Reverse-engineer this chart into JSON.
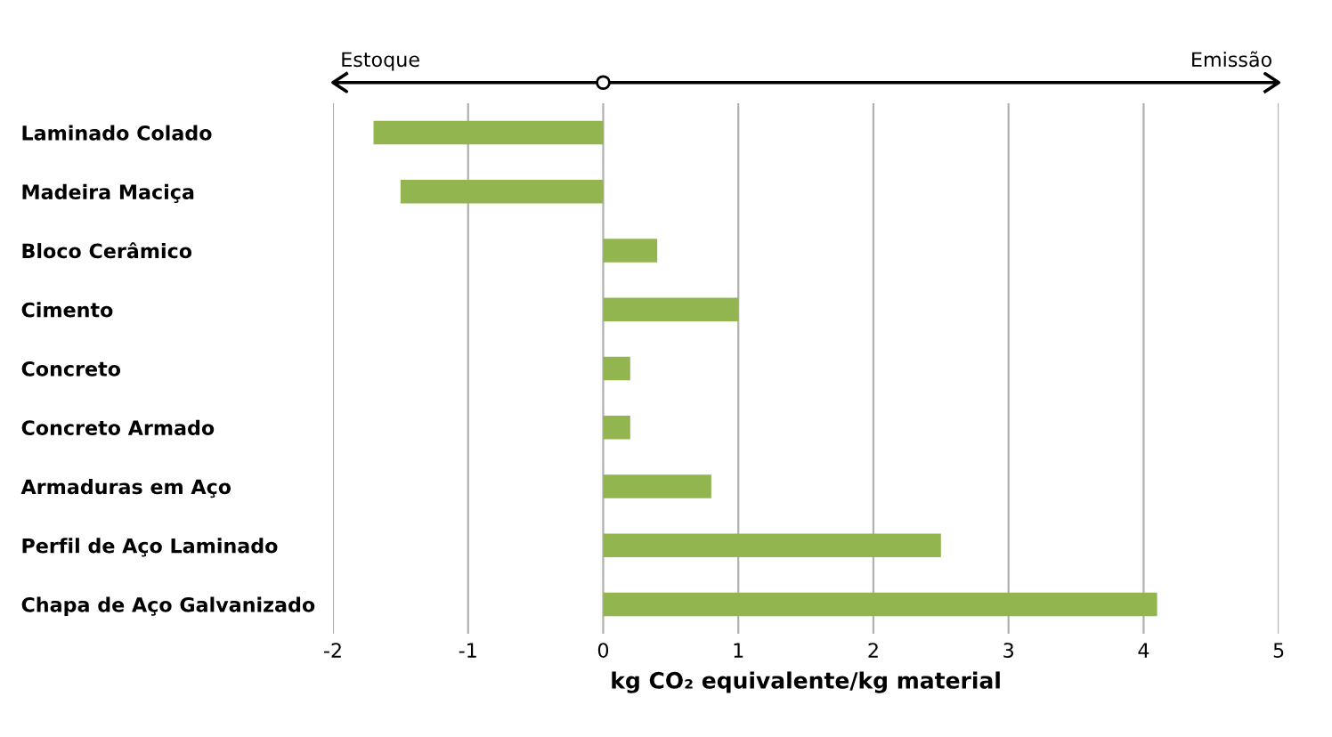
{
  "chart_data": {
    "type": "bar",
    "orientation": "horizontal",
    "xlabel": "kg CO₂ equivalente/kg material",
    "categories": [
      "Laminado Colado",
      "Madeira Maciça",
      "Bloco Cerâmico",
      "Cimento",
      "Concreto",
      "Concreto Armado",
      "Armaduras em Aço",
      "Perfil de Aço Laminado",
      "Chapa de Aço Galvanizado"
    ],
    "values": [
      -1.7,
      -1.5,
      0.4,
      1.0,
      0.2,
      0.2,
      0.8,
      2.5,
      4.1
    ],
    "color": "#92b550",
    "xlim": [
      -2,
      5
    ],
    "xticks": [
      -2,
      -1,
      0,
      1,
      2,
      3,
      4,
      5
    ],
    "grid": "x",
    "annotations": [
      "Estoque",
      "Emissão"
    ]
  }
}
